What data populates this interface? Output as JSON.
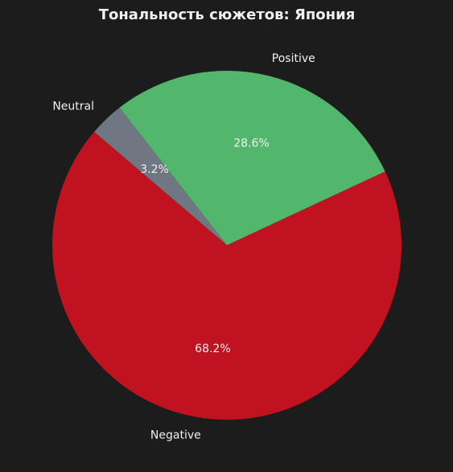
{
  "chart_data": {
    "type": "pie",
    "title": "Тональность сюжетов: Япония",
    "categories": [
      "Positive",
      "Neutral",
      "Negative"
    ],
    "values": [
      28.6,
      3.2,
      68.2
    ],
    "value_labels": [
      "28.6%",
      "3.2%",
      "68.2%"
    ],
    "colors": [
      "#52b76c",
      "#6e7782",
      "#c1121f"
    ]
  }
}
